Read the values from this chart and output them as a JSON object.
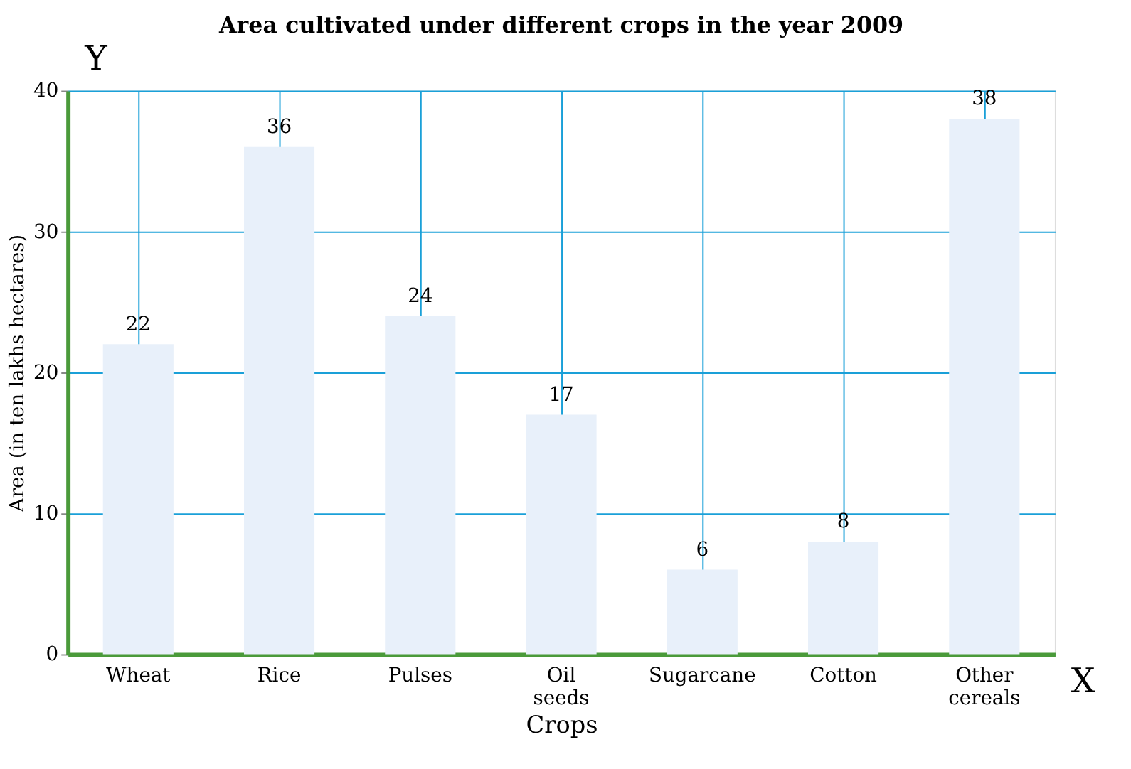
{
  "chart_data": {
    "type": "bar",
    "title": "Area cultivated under different crops in the year 2009",
    "xlabel": "Crops",
    "ylabel": "Area (in ten lakhs hectares)",
    "categories": [
      "Wheat",
      "Rice",
      "Pulses",
      "Oil seeds",
      "Sugarcane",
      "Cotton",
      "Other cereals"
    ],
    "values": [
      22,
      36,
      24,
      17,
      6,
      8,
      38
    ],
    "color": "#e8f0fa",
    "ylim": [
      0,
      40
    ],
    "yticks": [
      0,
      10,
      20,
      30,
      40
    ],
    "grid": true,
    "data_labels": true,
    "annotations": [
      "Y",
      "X"
    ]
  }
}
